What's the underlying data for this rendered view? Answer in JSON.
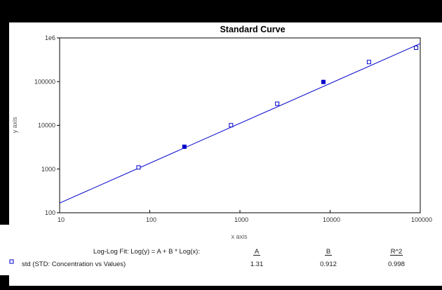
{
  "window": {
    "background": "#000000",
    "panel_background": "#ffffff"
  },
  "chart_data": {
    "type": "scatter",
    "title": "Standard Curve",
    "xlabel": "x axis",
    "ylabel": "y axis",
    "x_scale": "log",
    "y_scale": "log",
    "xlim": [
      10,
      100000
    ],
    "ylim": [
      100,
      1000000
    ],
    "grid": false,
    "x_ticks": [
      {
        "value": 10,
        "label": "10"
      },
      {
        "value": 100,
        "label": "100"
      },
      {
        "value": 1000,
        "label": "1000"
      },
      {
        "value": 10000,
        "label": "10000"
      },
      {
        "value": 100000,
        "label": "100000"
      }
    ],
    "y_ticks": [
      {
        "value": 100,
        "label": "100"
      },
      {
        "value": 1000,
        "label": "1000"
      },
      {
        "value": 10000,
        "label": "10000"
      },
      {
        "value": 100000,
        "label": "100000"
      },
      {
        "value": 1000000,
        "label": "1e6"
      }
    ],
    "series": [
      {
        "name": "std (STD: Concentration vs Values)",
        "marker": "open-square",
        "color": "#0000cc",
        "points": [
          {
            "x": 75,
            "y": 1090,
            "filled": false
          },
          {
            "x": 242,
            "y": 3240,
            "filled": true
          },
          {
            "x": 796,
            "y": 10080,
            "filled": false
          },
          {
            "x": 2590,
            "y": 31260,
            "filled": false
          },
          {
            "x": 8430,
            "y": 98400,
            "filled": true
          },
          {
            "x": 27000,
            "y": 281000,
            "filled": false
          },
          {
            "x": 90000,
            "y": 596000,
            "filled": false
          }
        ]
      }
    ],
    "fit": {
      "label": "Log-Log Fit: Log(y) = A + B * Log(x):",
      "line_color": "#0000cc",
      "columns": [
        "A",
        "B",
        "R^2"
      ],
      "rows": [
        {
          "series": "std (STD: Concentration vs Values)",
          "values": [
            "1.31",
            "0.912",
            "0.998"
          ]
        }
      ]
    }
  }
}
